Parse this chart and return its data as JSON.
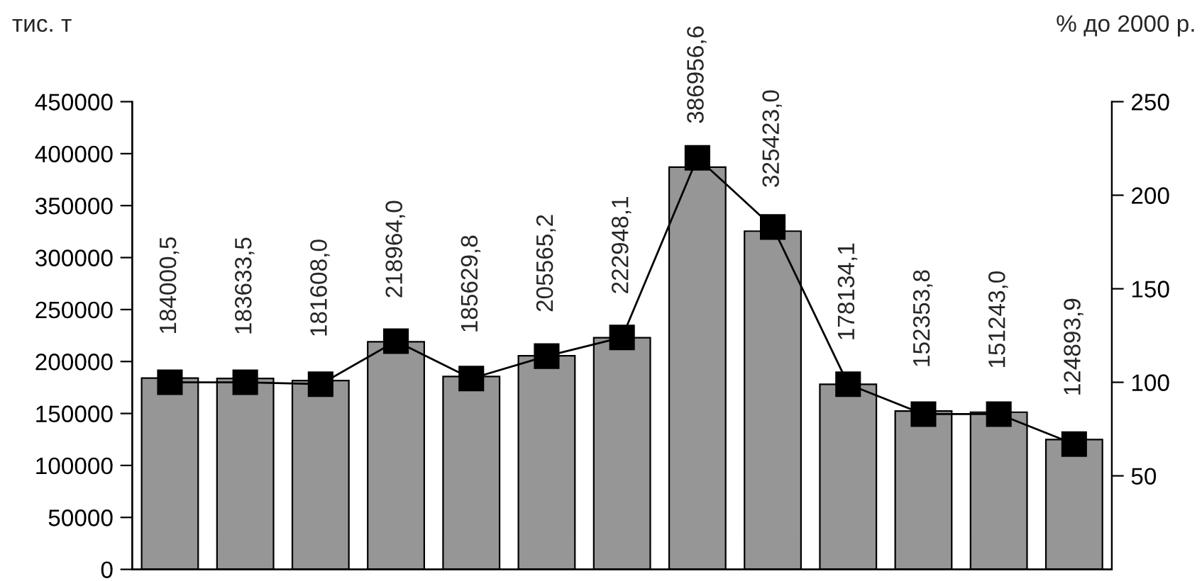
{
  "chart_data": {
    "type": "bar",
    "ylabel": "тис. т",
    "y2label": "% до 2000 р.",
    "categories": [
      null,
      null,
      null,
      null,
      null,
      null,
      null,
      null,
      null,
      null,
      null,
      null,
      null
    ],
    "series": [
      {
        "color": "#969696",
        "values": [
          184000.5,
          183633.5,
          181608.0,
          218964.0,
          185629.8,
          205565.2,
          222948.1,
          386956.6,
          325423.0,
          178134.1,
          152353.8,
          151243.0,
          124893.9
        ],
        "value_labels": [
          "184000,5",
          "183633,5",
          "181608,0",
          "218964,0",
          "185629,8",
          "205565,2",
          "222948,1",
          "386956,6",
          "325423,0",
          "178134,1",
          "152353,8",
          "151243,0",
          "124893,9"
        ]
      },
      {
        "type": "line",
        "axis": "y2",
        "color": "#000000",
        "values": [
          100,
          100,
          99,
          122,
          102,
          114,
          124,
          220,
          183,
          99,
          83,
          83,
          67
        ]
      }
    ],
    "ylim": [
      0,
      450000
    ],
    "yticks": [
      0,
      50000,
      100000,
      150000,
      200000,
      250000,
      300000,
      350000,
      400000,
      450000
    ],
    "y2lim": [
      0,
      250
    ],
    "y2ticks": [
      50,
      100,
      150,
      200,
      250
    ],
    "marker": "square",
    "line_style": "solid",
    "grid": false,
    "legend": false
  }
}
